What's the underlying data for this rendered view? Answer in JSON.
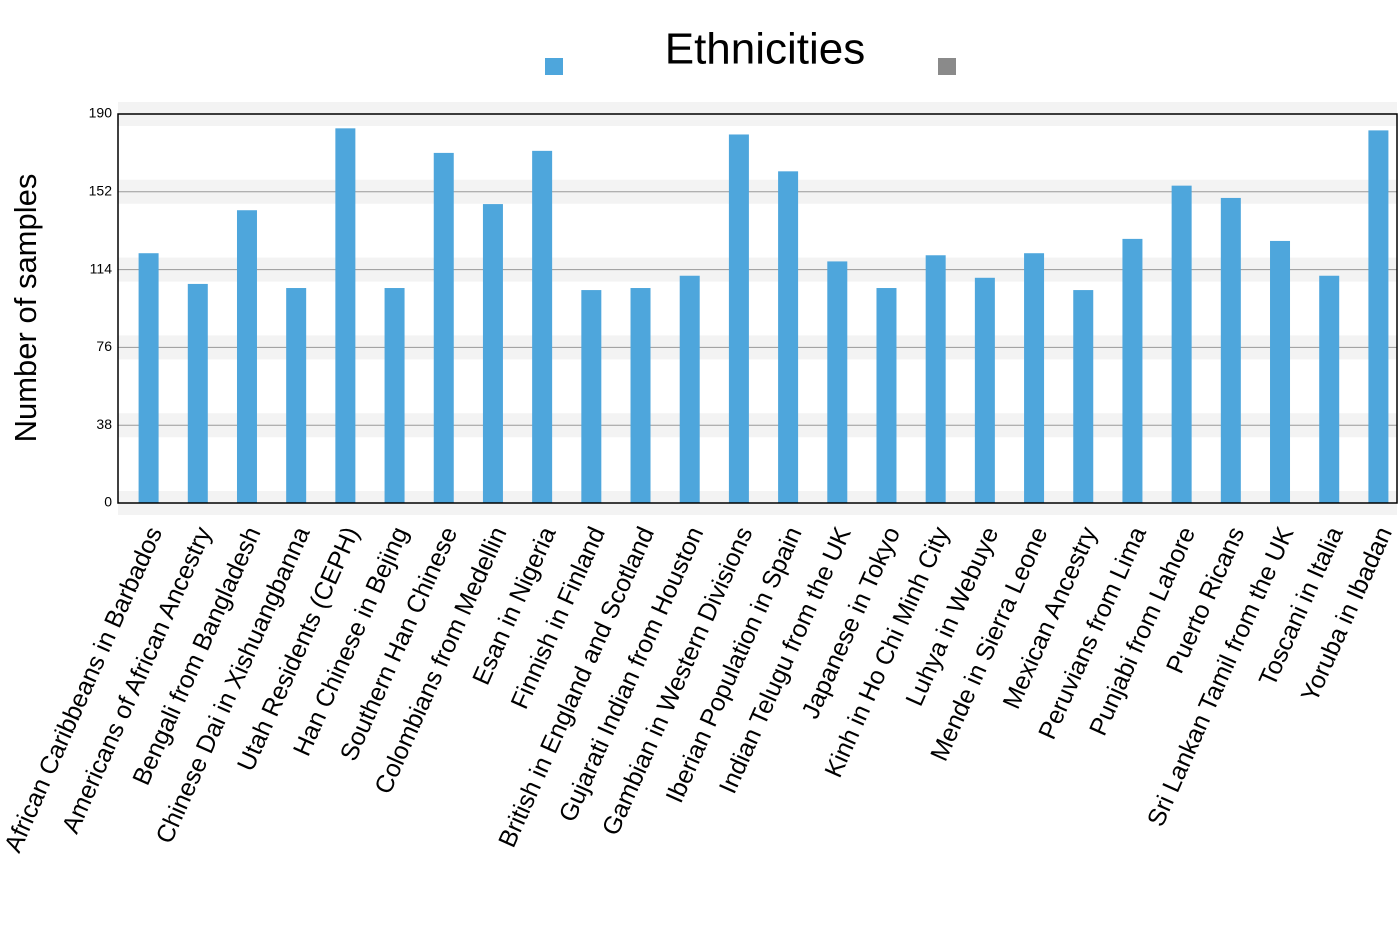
{
  "chart_data": {
    "type": "bar",
    "title": "Ethnicities",
    "y_label": "Number of samples",
    "categories": [
      "African Caribbeans in Barbados",
      "Americans of African Ancestry",
      "Bengali from Bangladesh",
      "Chinese Dai in Xishuangbanna",
      "Utah Residents (CEPH)",
      "Han Chinese in Bejing",
      "Southern Han Chinese",
      "Colombians from Medellin",
      "Esan in Nigeria",
      "Finnish in Finland",
      "British in England and Scotland",
      "Gujarati Indian from Houston",
      "Gambian in Western Divisions",
      "Iberian Population in Spain",
      "Indian Telugu from the UK",
      "Japanese in Tokyo",
      "Kinh in Ho Chi Minh City",
      "Luhya in Webuye",
      "Mende in Sierra Leone",
      "Mexican Ancestry",
      "Peruvians from Lima",
      "Punjabi from Lahore",
      "Puerto Ricans",
      "Sri Lankan Tamil from the UK",
      "Toscani in Italia",
      "Yoruba in Ibadan"
    ],
    "values": [
      122,
      107,
      143,
      105,
      183,
      105,
      171,
      146,
      172,
      104,
      105,
      111,
      180,
      162,
      118,
      105,
      121,
      110,
      122,
      104,
      129,
      155,
      149,
      128,
      111,
      182
    ],
    "color": "#4ea6dc",
    "ylim": [
      0,
      190
    ],
    "yticks": [
      0,
      38,
      76,
      114,
      152,
      190
    ],
    "grid": true
  }
}
